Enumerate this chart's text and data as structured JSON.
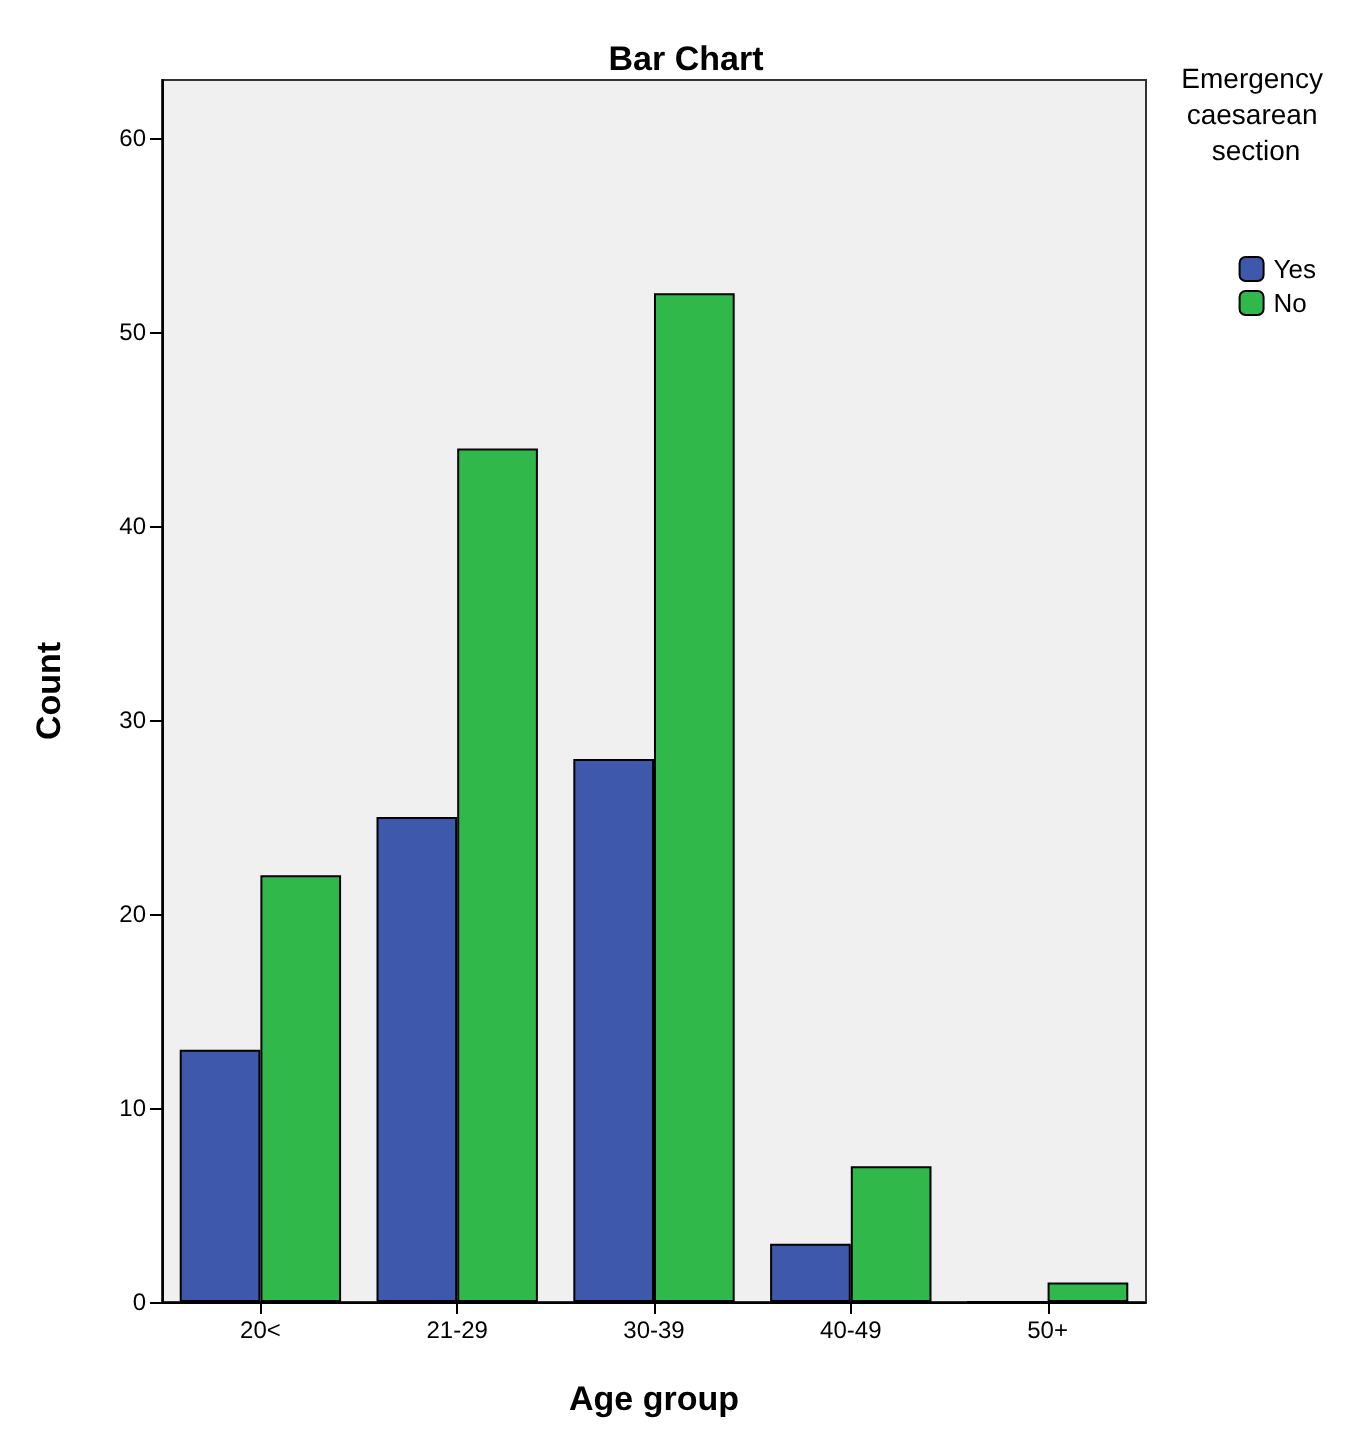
{
  "chart_data": {
    "type": "bar",
    "title": "Bar Chart",
    "xlabel": "Age group",
    "ylabel": "Count",
    "legend_title": "Emergency caesarean section",
    "categories": [
      "20<",
      "21-29",
      "30-39",
      "40-49",
      "50+"
    ],
    "series": [
      {
        "name": "Yes",
        "color": "#3e58ac",
        "values": [
          13,
          25,
          28,
          3,
          0
        ]
      },
      {
        "name": "No",
        "color": "#30b94a",
        "values": [
          22,
          44,
          52,
          7,
          1
        ]
      }
    ],
    "ylim": [
      0,
      63
    ],
    "yticks": [
      0,
      10,
      20,
      30,
      40,
      50,
      60
    ],
    "grid": false,
    "legend": "top right"
  }
}
